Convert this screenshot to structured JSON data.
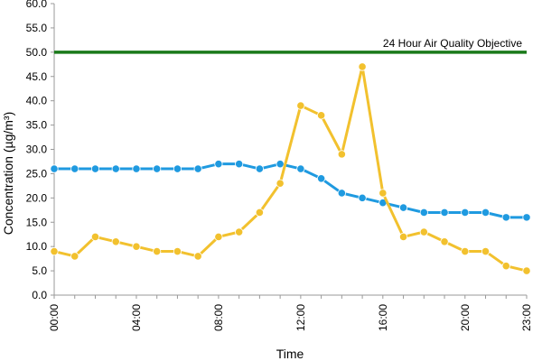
{
  "chart_data": {
    "type": "line",
    "title": "",
    "xlabel": "Time",
    "ylabel": "Concentration (µg/m³)",
    "ylim": [
      0,
      60
    ],
    "yticks": [
      "0.0",
      "5.0",
      "10.0",
      "15.0",
      "20.0",
      "25.0",
      "30.0",
      "35.0",
      "40.0",
      "45.0",
      "50.0",
      "55.0",
      "60.0"
    ],
    "x": [
      0,
      1,
      2,
      3,
      4,
      5,
      6,
      7,
      8,
      9,
      10,
      11,
      12,
      13,
      14,
      15,
      16,
      17,
      18,
      19,
      20,
      21,
      22,
      23
    ],
    "xticks": [
      {
        "x": 0,
        "label": "00:00"
      },
      {
        "x": 4,
        "label": "04:00"
      },
      {
        "x": 8,
        "label": "08:00"
      },
      {
        "x": 12,
        "label": "12:00"
      },
      {
        "x": 16,
        "label": "16:00"
      },
      {
        "x": 20,
        "label": "20:00"
      },
      {
        "x": 23,
        "label": "23:00"
      }
    ],
    "grid": false,
    "legend": "none",
    "series": [
      {
        "color": "#1f9ae0",
        "values": [
          26,
          26,
          26,
          26,
          26,
          26,
          26,
          26,
          27,
          27,
          26,
          27,
          26,
          24,
          21,
          20,
          19,
          18,
          17,
          17,
          17,
          17,
          16,
          16
        ]
      },
      {
        "color": "#f2c12e",
        "values": [
          9,
          8,
          12,
          11,
          10,
          9,
          9,
          8,
          12,
          13,
          17,
          23,
          39,
          37,
          29,
          47,
          21,
          12,
          13,
          11,
          9,
          9,
          6,
          5
        ]
      }
    ],
    "reference_line": {
      "value": 50,
      "label": "24 Hour Air Quality Objective",
      "color": "#1a7a1a"
    }
  }
}
